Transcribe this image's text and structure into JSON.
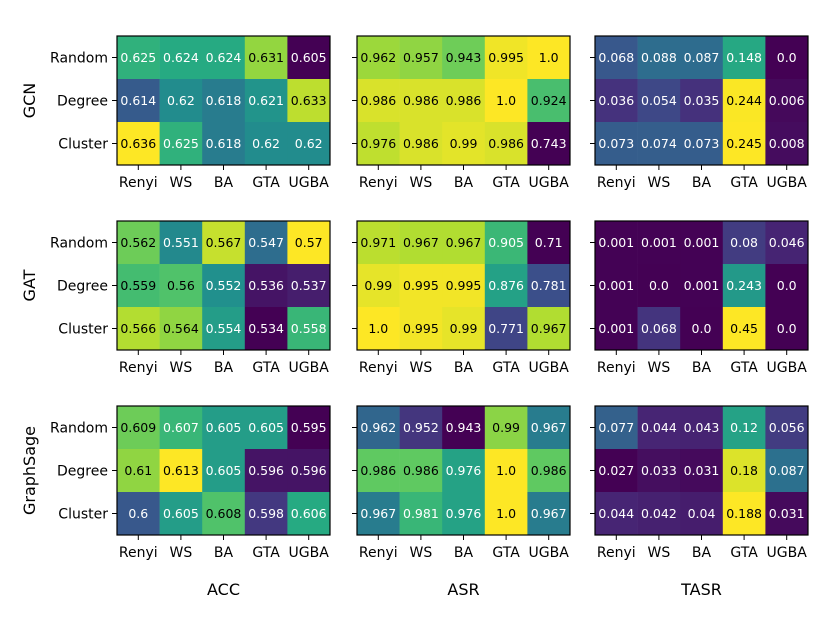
{
  "chart_data": {
    "type": "heatmap",
    "colormap": "viridis",
    "row_tick_labels": [
      "Random",
      "Degree",
      "Cluster"
    ],
    "col_tick_labels": [
      "Renyi",
      "WS",
      "BA",
      "GTA",
      "UGBA"
    ],
    "model_labels": [
      "GCN",
      "GAT",
      "GraphSage"
    ],
    "metric_labels": [
      "ACC",
      "ASR",
      "TASR"
    ],
    "panels": [
      {
        "model": "GCN",
        "metric": "ACC",
        "values": [
          [
            "0.625",
            "0.624",
            "0.624",
            "0.631",
            "0.605"
          ],
          [
            "0.614",
            "0.62",
            "0.618",
            "0.621",
            "0.633"
          ],
          [
            "0.636",
            "0.625",
            "0.618",
            "0.62",
            "0.62"
          ]
        ]
      },
      {
        "model": "GCN",
        "metric": "ASR",
        "values": [
          [
            "0.962",
            "0.957",
            "0.943",
            "0.995",
            "1.0"
          ],
          [
            "0.986",
            "0.986",
            "0.986",
            "1.0",
            "0.924"
          ],
          [
            "0.976",
            "0.986",
            "0.99",
            "0.986",
            "0.743"
          ]
        ]
      },
      {
        "model": "GCN",
        "metric": "TASR",
        "values": [
          [
            "0.068",
            "0.088",
            "0.087",
            "0.148",
            "0.0"
          ],
          [
            "0.036",
            "0.054",
            "0.035",
            "0.244",
            "0.006"
          ],
          [
            "0.073",
            "0.074",
            "0.073",
            "0.245",
            "0.008"
          ]
        ]
      },
      {
        "model": "GAT",
        "metric": "ACC",
        "values": [
          [
            "0.562",
            "0.551",
            "0.567",
            "0.547",
            "0.57"
          ],
          [
            "0.559",
            "0.56",
            "0.552",
            "0.536",
            "0.537"
          ],
          [
            "0.566",
            "0.564",
            "0.554",
            "0.534",
            "0.558"
          ]
        ]
      },
      {
        "model": "GAT",
        "metric": "ASR",
        "values": [
          [
            "0.971",
            "0.967",
            "0.967",
            "0.905",
            "0.71"
          ],
          [
            "0.99",
            "0.995",
            "0.995",
            "0.876",
            "0.781"
          ],
          [
            "1.0",
            "0.995",
            "0.99",
            "0.771",
            "0.967"
          ]
        ]
      },
      {
        "model": "GAT",
        "metric": "TASR",
        "values": [
          [
            "0.001",
            "0.001",
            "0.001",
            "0.08",
            "0.046"
          ],
          [
            "0.001",
            "0.0",
            "0.001",
            "0.243",
            "0.0"
          ],
          [
            "0.001",
            "0.068",
            "0.0",
            "0.45",
            "0.0"
          ]
        ]
      },
      {
        "model": "GraphSage",
        "metric": "ACC",
        "values": [
          [
            "0.609",
            "0.607",
            "0.605",
            "0.605",
            "0.595"
          ],
          [
            "0.61",
            "0.613",
            "0.605",
            "0.596",
            "0.596"
          ],
          [
            "0.6",
            "0.605",
            "0.608",
            "0.598",
            "0.606"
          ]
        ]
      },
      {
        "model": "GraphSage",
        "metric": "ASR",
        "values": [
          [
            "0.962",
            "0.952",
            "0.943",
            "0.99",
            "0.967"
          ],
          [
            "0.986",
            "0.986",
            "0.976",
            "1.0",
            "0.986"
          ],
          [
            "0.967",
            "0.981",
            "0.976",
            "1.0",
            "0.967"
          ]
        ]
      },
      {
        "model": "GraphSage",
        "metric": "TASR",
        "values": [
          [
            "0.077",
            "0.044",
            "0.043",
            "0.12",
            "0.056"
          ],
          [
            "0.027",
            "0.033",
            "0.031",
            "0.18",
            "0.087"
          ],
          [
            "0.044",
            "0.042",
            "0.04",
            "0.188",
            "0.031"
          ]
        ]
      }
    ]
  }
}
